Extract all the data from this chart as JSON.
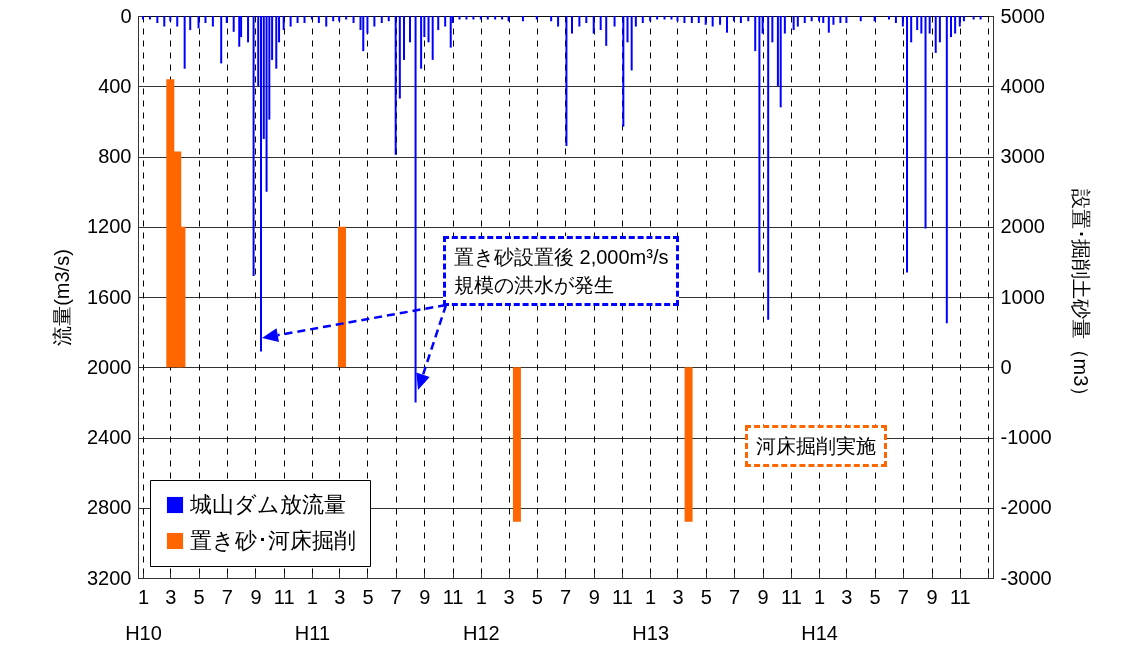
{
  "chart_data": {
    "type": "bar",
    "ylabel": "流量(m3/s)",
    "y2label": "設置･掘削土砂量（m3）",
    "xlim": [
      "1998-01",
      "2003-01"
    ],
    "xticks": [
      {
        "value": "1998-01",
        "label": "1\nH10"
      },
      {
        "value": "1998-03",
        "label": "3"
      },
      {
        "value": "1998-05",
        "label": "5"
      },
      {
        "value": "1998-07",
        "label": "7"
      },
      {
        "value": "1998-09",
        "label": "9"
      },
      {
        "value": "1998-11",
        "label": "11"
      },
      {
        "value": "1999-01",
        "label": "1\nH11"
      },
      {
        "value": "1999-03",
        "label": "3"
      },
      {
        "value": "1999-05",
        "label": "5"
      },
      {
        "value": "1999-07",
        "label": "7"
      },
      {
        "value": "1999-09",
        "label": "9"
      },
      {
        "value": "1999-11",
        "label": "11"
      },
      {
        "value": "2000-01",
        "label": "1\nH12"
      },
      {
        "value": "2000-03",
        "label": "3"
      },
      {
        "value": "2000-05",
        "label": "5"
      },
      {
        "value": "2000-07",
        "label": "7"
      },
      {
        "value": "2000-09",
        "label": "9"
      },
      {
        "value": "2000-11",
        "label": "11"
      },
      {
        "value": "2001-01",
        "label": "1\nH13"
      },
      {
        "value": "2001-03",
        "label": "3"
      },
      {
        "value": "2001-05",
        "label": "5"
      },
      {
        "value": "2001-07",
        "label": "7"
      },
      {
        "value": "2001-09",
        "label": "9"
      },
      {
        "value": "2001-11",
        "label": "11"
      },
      {
        "value": "2002-01",
        "label": "1\nH14"
      },
      {
        "value": "2002-03",
        "label": "3"
      },
      {
        "value": "2002-05",
        "label": "5"
      },
      {
        "value": "2002-07",
        "label": "7"
      },
      {
        "value": "2002-09",
        "label": "9"
      },
      {
        "value": "2002-11",
        "label": "11"
      },
      {
        "value": "2003-01",
        "label": null
      }
    ],
    "ylim": [
      3200,
      0
    ],
    "yticks": [
      0,
      400,
      800,
      1200,
      1600,
      2000,
      2400,
      2800,
      3200
    ],
    "y2lim": [
      -3000,
      5000
    ],
    "y2ticks": [
      -3000,
      -2000,
      -1000,
      0,
      1000,
      2000,
      3000,
      4000,
      5000
    ],
    "grid": true,
    "legend": "bottom left",
    "annotations": [
      "置き砂設置後 2,000m³/s\n規模の洪水が発生",
      "河床掘削実施"
    ],
    "series": [
      {
        "name": "城山ダム放流量",
        "color": "#0000ff",
        "x": [
          "1998-01-01",
          "1998-01-16",
          "1998-02-01",
          "1998-02-16",
          "1998-03-01",
          "1998-03-16",
          "1998-04-01",
          "1998-04-13",
          "1998-05-01",
          "1998-05-16",
          "1998-06-01",
          "1998-06-19",
          "1998-07-01",
          "1998-07-16",
          "1998-07-28",
          "1998-08-01",
          "1998-08-16",
          "1998-08-28",
          "1998-09-07",
          "1998-09-13",
          "1998-09-19",
          "1998-09-25",
          "1998-10-01",
          "1998-10-07",
          "1998-10-16",
          "1998-10-22",
          "1998-11-01",
          "1998-11-16",
          "1998-12-01",
          "1998-12-16",
          "1999-01-01",
          "1999-01-16",
          "1999-02-01",
          "1999-02-16",
          "1999-03-01",
          "1999-03-16",
          "1999-04-01",
          "1999-04-16",
          "1999-04-22",
          "1999-05-01",
          "1999-05-16",
          "1999-06-01",
          "1999-06-16",
          "1999-07-01",
          "1999-07-10",
          "1999-07-19",
          "1999-08-01",
          "1999-08-13",
          "1999-08-25",
          "1999-09-01",
          "1999-09-10",
          "1999-09-19",
          "1999-10-01",
          "1999-10-16",
          "1999-10-28",
          "1999-11-01",
          "1999-11-16",
          "1999-12-01",
          "1999-12-16",
          "2000-01-01",
          "2000-01-16",
          "2000-02-01",
          "2000-02-16",
          "2000-03-01",
          "2000-04-01",
          "2000-05-01",
          "2000-06-01",
          "2000-06-16",
          "2000-07-04",
          "2000-07-16",
          "2000-08-01",
          "2000-08-16",
          "2000-09-01",
          "2000-09-16",
          "2000-09-28",
          "2000-10-16",
          "2000-11-04",
          "2000-11-13",
          "2000-11-22",
          "2000-12-01",
          "2000-12-16",
          "2001-01-01",
          "2001-01-16",
          "2001-02-01",
          "2001-02-16",
          "2001-03-01",
          "2001-03-16",
          "2001-04-01",
          "2001-04-16",
          "2001-05-01",
          "2001-05-16",
          "2001-06-01",
          "2001-06-16",
          "2001-07-01",
          "2001-07-16",
          "2001-08-01",
          "2001-08-16",
          "2001-08-25",
          "2001-09-01",
          "2001-09-13",
          "2001-09-22",
          "2001-10-04",
          "2001-10-10",
          "2001-10-19",
          "2001-11-07",
          "2001-11-16",
          "2001-12-01",
          "2001-12-16",
          "2002-01-01",
          "2002-01-10",
          "2002-01-22",
          "2002-02-01",
          "2002-02-16",
          "2002-03-01",
          "2002-04-01",
          "2002-05-01",
          "2002-06-01",
          "2002-06-16",
          "2002-07-01",
          "2002-07-10",
          "2002-07-19",
          "2002-08-01",
          "2002-08-10",
          "2002-08-19",
          "2002-08-28",
          "2002-09-10",
          "2002-09-19",
          "2002-10-04",
          "2002-10-13",
          "2002-10-22",
          "2002-11-01",
          "2002-11-10",
          "2002-12-01",
          "2002-12-16"
        ],
        "values": [
          20,
          20,
          40,
          60,
          30,
          60,
          300,
          80,
          70,
          40,
          60,
          270,
          40,
          90,
          175,
          120,
          150,
          1480,
          400,
          1910,
          700,
          1000,
          590,
          250,
          300,
          150,
          80,
          60,
          40,
          40,
          20,
          40,
          60,
          30,
          30,
          20,
          40,
          80,
          200,
          100,
          60,
          40,
          30,
          790,
          470,
          250,
          150,
          2200,
          300,
          120,
          150,
          250,
          80,
          60,
          180,
          40,
          20,
          20,
          20,
          20,
          20,
          20,
          20,
          30,
          30,
          20,
          30,
          60,
          740,
          100,
          60,
          40,
          100,
          80,
          170,
          60,
          630,
          150,
          310,
          60,
          40,
          30,
          20,
          20,
          20,
          30,
          40,
          40,
          40,
          50,
          60,
          50,
          95,
          30,
          40,
          30,
          200,
          1460,
          100,
          1730,
          150,
          400,
          520,
          100,
          80,
          60,
          40,
          30,
          30,
          40,
          95,
          50,
          40,
          40,
          30,
          30,
          20,
          40,
          60,
          1460,
          150,
          80,
          100,
          1210,
          100,
          210,
          150,
          1750,
          120,
          100,
          60,
          30,
          20,
          20
        ]
      },
      {
        "name": "置き砂･河床掘削",
        "color": "#ff6600",
        "axis": "y2",
        "x": [
          "1998-03-01",
          "1998-03-16",
          "1998-03-25",
          "1999-03-07",
          "2000-03-19",
          "2001-03-25"
        ],
        "values": [
          4100,
          3070,
          2000,
          2000,
          -2200,
          -2200
        ]
      }
    ]
  }
}
